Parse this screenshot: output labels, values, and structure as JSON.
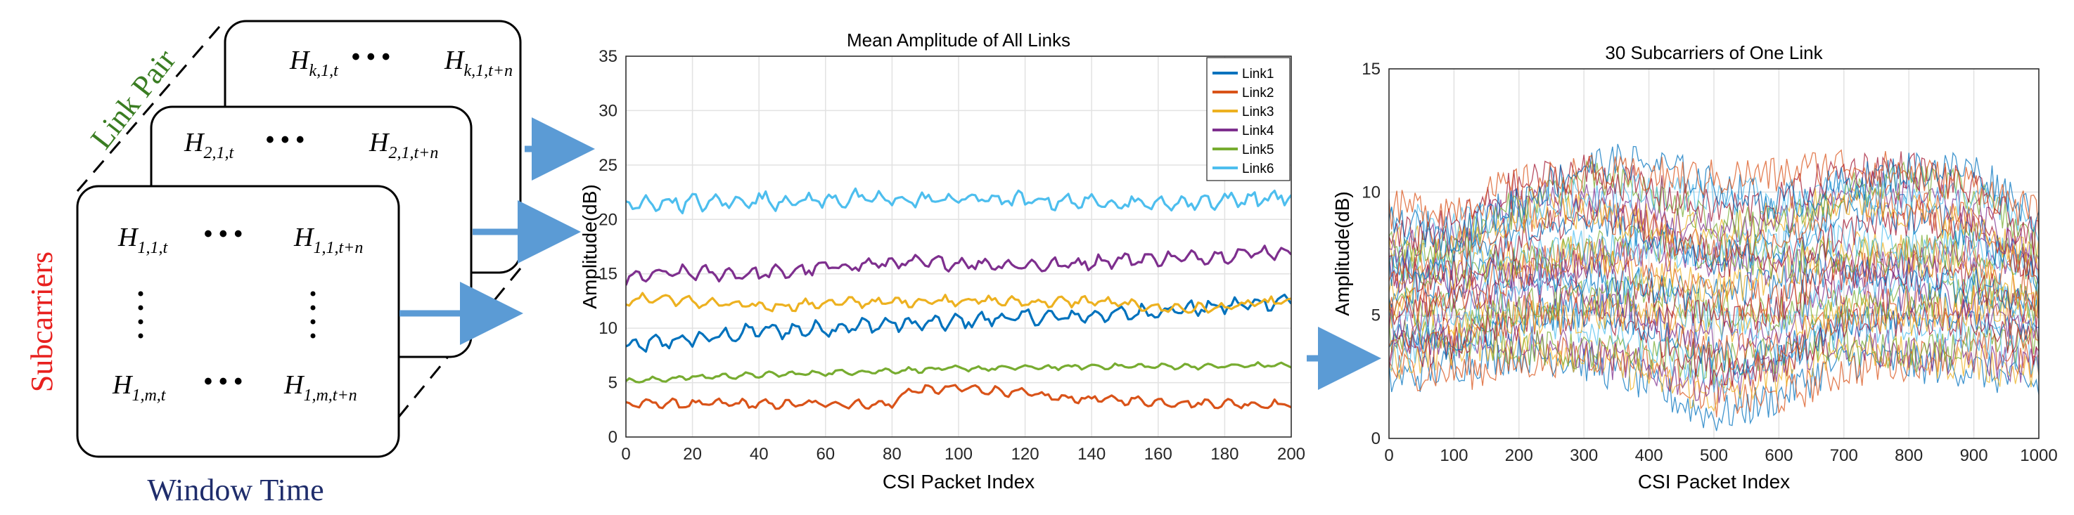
{
  "matrix_panel": {
    "axis_link_pair": "Link Pair",
    "axis_subcarriers": "Subcarriers",
    "axis_window_time": "Window Time",
    "dots_h": "• • •",
    "colors": {
      "link_pair": "#3a7d22",
      "subcarriers": "#e8201e",
      "window_time": "#1f2d6b",
      "arrow": "#5b9bd5"
    },
    "cards": [
      {
        "left_base": "H",
        "left_sub": "k,1,t",
        "right_base": "H",
        "right_sub": "k,1,t+n"
      },
      {
        "left_base": "H",
        "left_sub": "2,1,t",
        "right_base": "H",
        "right_sub": "2,1,t+n"
      },
      {
        "top_left_base": "H",
        "top_left_sub": "1,1,t",
        "top_right_base": "H",
        "top_right_sub": "1,1,t+n",
        "bottom_left_base": "H",
        "bottom_left_sub": "1,m,t",
        "bottom_right_base": "H",
        "bottom_right_sub": "1,m,t+n"
      }
    ]
  },
  "chart_data": [
    {
      "type": "line",
      "title": "Mean Amplitude of All Links",
      "xlabel": "CSI Packet Index",
      "ylabel": "Amplitude(dB)",
      "xlim": [
        0,
        200
      ],
      "ylim": [
        0,
        35
      ],
      "xticks": [
        0,
        20,
        40,
        60,
        80,
        100,
        120,
        140,
        160,
        180,
        200
      ],
      "yticks": [
        0,
        5,
        10,
        15,
        20,
        25,
        30,
        35
      ],
      "grid": true,
      "legend_position": "top-right",
      "series": [
        {
          "name": "Link1",
          "color": "#0072bd",
          "x": [
            0,
            10,
            20,
            30,
            40,
            50,
            60,
            70,
            80,
            90,
            100,
            110,
            120,
            130,
            140,
            150,
            160,
            170,
            180,
            190,
            200
          ],
          "values": [
            8.2,
            8.7,
            9.0,
            9.3,
            9.8,
            9.8,
            10.0,
            10.2,
            10.4,
            10.4,
            10.6,
            10.9,
            11.0,
            11.0,
            11.2,
            11.3,
            11.6,
            11.8,
            12.0,
            12.3,
            12.6
          ]
        },
        {
          "name": "Link2",
          "color": "#d95319",
          "x": [
            0,
            10,
            20,
            30,
            40,
            50,
            60,
            70,
            80,
            85,
            90,
            100,
            110,
            120,
            130,
            140,
            150,
            160,
            170,
            180,
            190,
            200
          ],
          "values": [
            3.0,
            3.1,
            3.0,
            3.1,
            3.0,
            3.0,
            3.1,
            3.0,
            3.0,
            4.3,
            4.3,
            4.5,
            4.3,
            4.0,
            3.6,
            3.5,
            3.4,
            3.2,
            3.1,
            3.1,
            3.0,
            3.0
          ]
        },
        {
          "name": "Link3",
          "color": "#edb120",
          "x": [
            0,
            10,
            20,
            30,
            40,
            50,
            60,
            70,
            80,
            90,
            100,
            110,
            120,
            130,
            140,
            150,
            160,
            170,
            180,
            190,
            200
          ],
          "values": [
            12.5,
            12.8,
            12.4,
            12.2,
            12.0,
            12.1,
            12.3,
            12.4,
            12.4,
            12.5,
            12.6,
            12.5,
            12.4,
            12.4,
            12.5,
            12.2,
            11.9,
            11.8,
            11.9,
            12.3,
            12.5
          ]
        },
        {
          "name": "Link4",
          "color": "#7e2f8e",
          "x": [
            0,
            10,
            20,
            30,
            40,
            50,
            60,
            70,
            80,
            90,
            100,
            110,
            120,
            130,
            140,
            150,
            160,
            170,
            180,
            190,
            200
          ],
          "values": [
            14.5,
            15.0,
            15.1,
            15.0,
            15.0,
            15.2,
            15.6,
            15.8,
            16.0,
            16.0,
            16.0,
            15.9,
            15.8,
            15.8,
            16.1,
            16.3,
            16.4,
            16.5,
            16.7,
            17.0,
            17.0
          ]
        },
        {
          "name": "Link5",
          "color": "#77ac30",
          "x": [
            0,
            10,
            20,
            30,
            40,
            50,
            60,
            70,
            80,
            90,
            100,
            110,
            120,
            130,
            140,
            150,
            160,
            170,
            180,
            190,
            200
          ],
          "values": [
            5.1,
            5.3,
            5.5,
            5.6,
            5.7,
            5.8,
            5.9,
            6.0,
            6.1,
            6.2,
            6.3,
            6.3,
            6.4,
            6.4,
            6.5,
            6.5,
            6.5,
            6.5,
            6.5,
            6.6,
            6.6
          ]
        },
        {
          "name": "Link6",
          "color": "#4dbeee",
          "x": [
            0,
            10,
            20,
            30,
            40,
            50,
            60,
            70,
            80,
            90,
            100,
            110,
            120,
            130,
            140,
            150,
            160,
            170,
            180,
            190,
            200
          ],
          "values": [
            21.2,
            21.6,
            21.5,
            21.6,
            21.8,
            21.7,
            21.8,
            21.9,
            21.8,
            21.8,
            21.9,
            21.9,
            21.7,
            21.7,
            21.6,
            21.6,
            21.4,
            21.6,
            21.8,
            21.9,
            22.1
          ]
        }
      ]
    },
    {
      "type": "line",
      "title": "30 Subcarriers of One Link",
      "xlabel": "CSI Packet Index",
      "ylabel": "Amplitude(dB)",
      "xlim": [
        0,
        1000
      ],
      "ylim": [
        0,
        15
      ],
      "xticks": [
        0,
        100,
        200,
        300,
        400,
        500,
        600,
        700,
        800,
        900,
        1000
      ],
      "yticks": [
        0,
        5,
        10,
        15
      ],
      "grid": true,
      "n_series": 30,
      "envelope_x": [
        0,
        100,
        200,
        300,
        400,
        500,
        600,
        700,
        800,
        900,
        1000
      ],
      "envelope_low": [
        2.2,
        2.4,
        2.3,
        2.0,
        1.6,
        0.5,
        1.0,
        2.0,
        1.8,
        2.2,
        2.0
      ],
      "envelope_high": [
        9.5,
        9.5,
        11.0,
        12.0,
        11.8,
        11.2,
        11.0,
        11.8,
        12.0,
        11.5,
        9.5
      ],
      "palette": [
        "#0072bd",
        "#d95319",
        "#edb120",
        "#7e2f8e",
        "#77ac30",
        "#4dbeee",
        "#a2142f"
      ]
    }
  ]
}
